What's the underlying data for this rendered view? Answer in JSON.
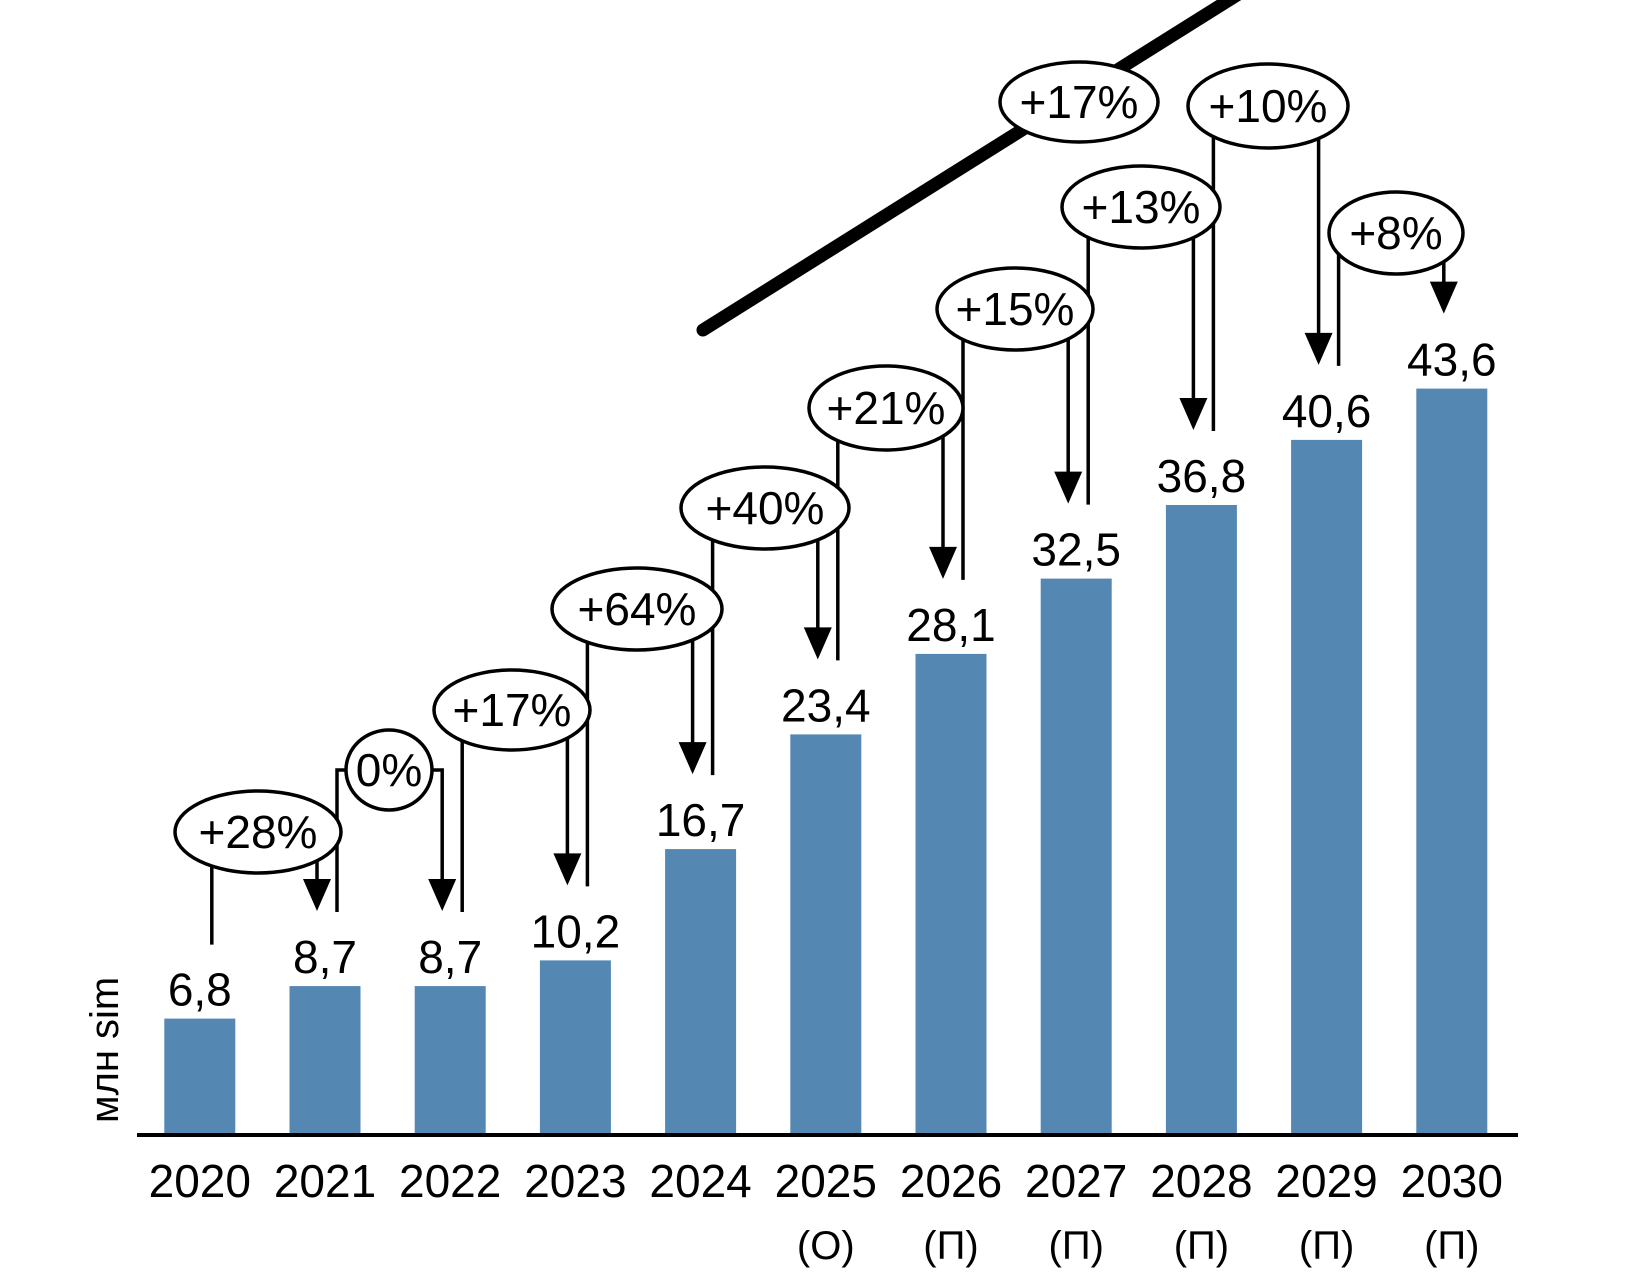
{
  "chart_data": {
    "type": "bar",
    "title": "",
    "unit_label": "млн sim",
    "bar_color": "#5487b2",
    "axis_color": "#000000",
    "annotation_color": "#000000",
    "grid": "off",
    "legend": "none",
    "ylim": [
      0,
      47
    ],
    "categories": [
      "2020",
      "2021",
      "2022",
      "2023",
      "2024",
      "2025",
      "2026",
      "2027",
      "2028",
      "2029",
      "2030"
    ],
    "category_notes": [
      "",
      "",
      "",
      "",
      "",
      "(О)",
      "(П)",
      "(П)",
      "(П)",
      "(П)",
      "(П)"
    ],
    "values": [
      6.8,
      8.7,
      8.7,
      10.2,
      16.7,
      23.4,
      28.1,
      32.5,
      36.8,
      40.6,
      43.6
    ],
    "value_labels": [
      "6,8",
      "8,7",
      "8,7",
      "10,2",
      "16,7",
      "23,4",
      "28,1",
      "32,5",
      "36,8",
      "40,6",
      "43,6"
    ],
    "growth_annotations": [
      {
        "label": "+28%",
        "from": 0,
        "to": 1
      },
      {
        "label": "0%",
        "from": 1,
        "to": 2
      },
      {
        "label": "+17%",
        "from": 2,
        "to": 3
      },
      {
        "label": "+64%",
        "from": 3,
        "to": 4
      },
      {
        "label": "+40%",
        "from": 4,
        "to": 5
      },
      {
        "label": "+21%",
        "from": 5,
        "to": 6
      },
      {
        "label": "+15%",
        "from": 6,
        "to": 7
      },
      {
        "label": "+13%",
        "from": 7,
        "to": 8
      },
      {
        "label": "+10%",
        "from": 8,
        "to": 9
      },
      {
        "label": "+8%",
        "from": 9,
        "to": 10
      }
    ],
    "trend_annotation": {
      "label": "+17%"
    }
  }
}
